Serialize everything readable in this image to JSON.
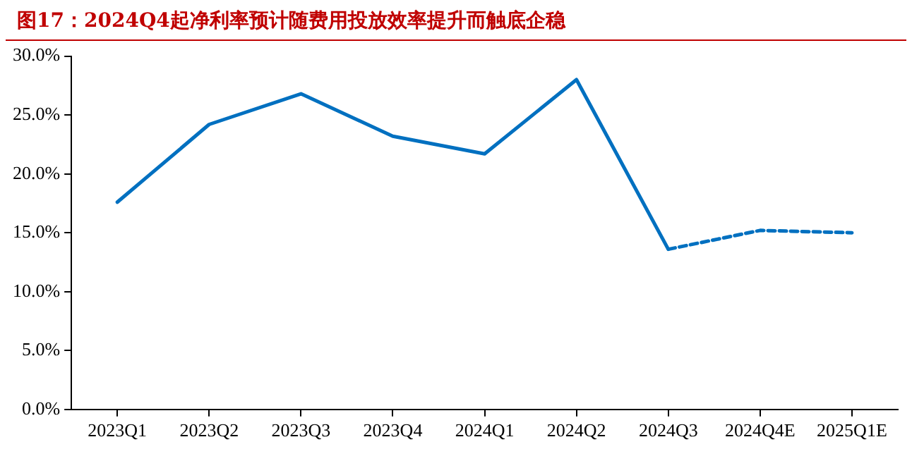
{
  "chart_data": {
    "type": "line",
    "title": "图17：2024Q4起净利率预计随费用投放效率提升而触底企稳",
    "categories": [
      "2023Q1",
      "2023Q2",
      "2023Q3",
      "2023Q4",
      "2024Q1",
      "2024Q2",
      "2024Q3",
      "2024Q4E",
      "2025Q1E"
    ],
    "series": [
      {
        "color": "#0070c0",
        "line_style": "solid",
        "values": [
          17.6,
          24.2,
          26.8,
          23.2,
          21.7,
          28.0,
          13.6,
          null,
          null
        ]
      },
      {
        "color": "#0070c0",
        "line_style": "dashed",
        "values": [
          null,
          null,
          null,
          null,
          null,
          null,
          13.6,
          15.2,
          15.0
        ]
      }
    ],
    "ylim": [
      0,
      30
    ],
    "yticks": [
      {
        "value": 0,
        "label": "0.0%"
      },
      {
        "value": 5,
        "label": "5.0%"
      },
      {
        "value": 10,
        "label": "10.0%"
      },
      {
        "value": 15,
        "label": "15.0%"
      },
      {
        "value": 20,
        "label": "20.0%"
      },
      {
        "value": 25,
        "label": "25.0%"
      },
      {
        "value": 30,
        "label": "30.0%"
      }
    ],
    "grid": false,
    "legend": false,
    "marker": "none"
  }
}
